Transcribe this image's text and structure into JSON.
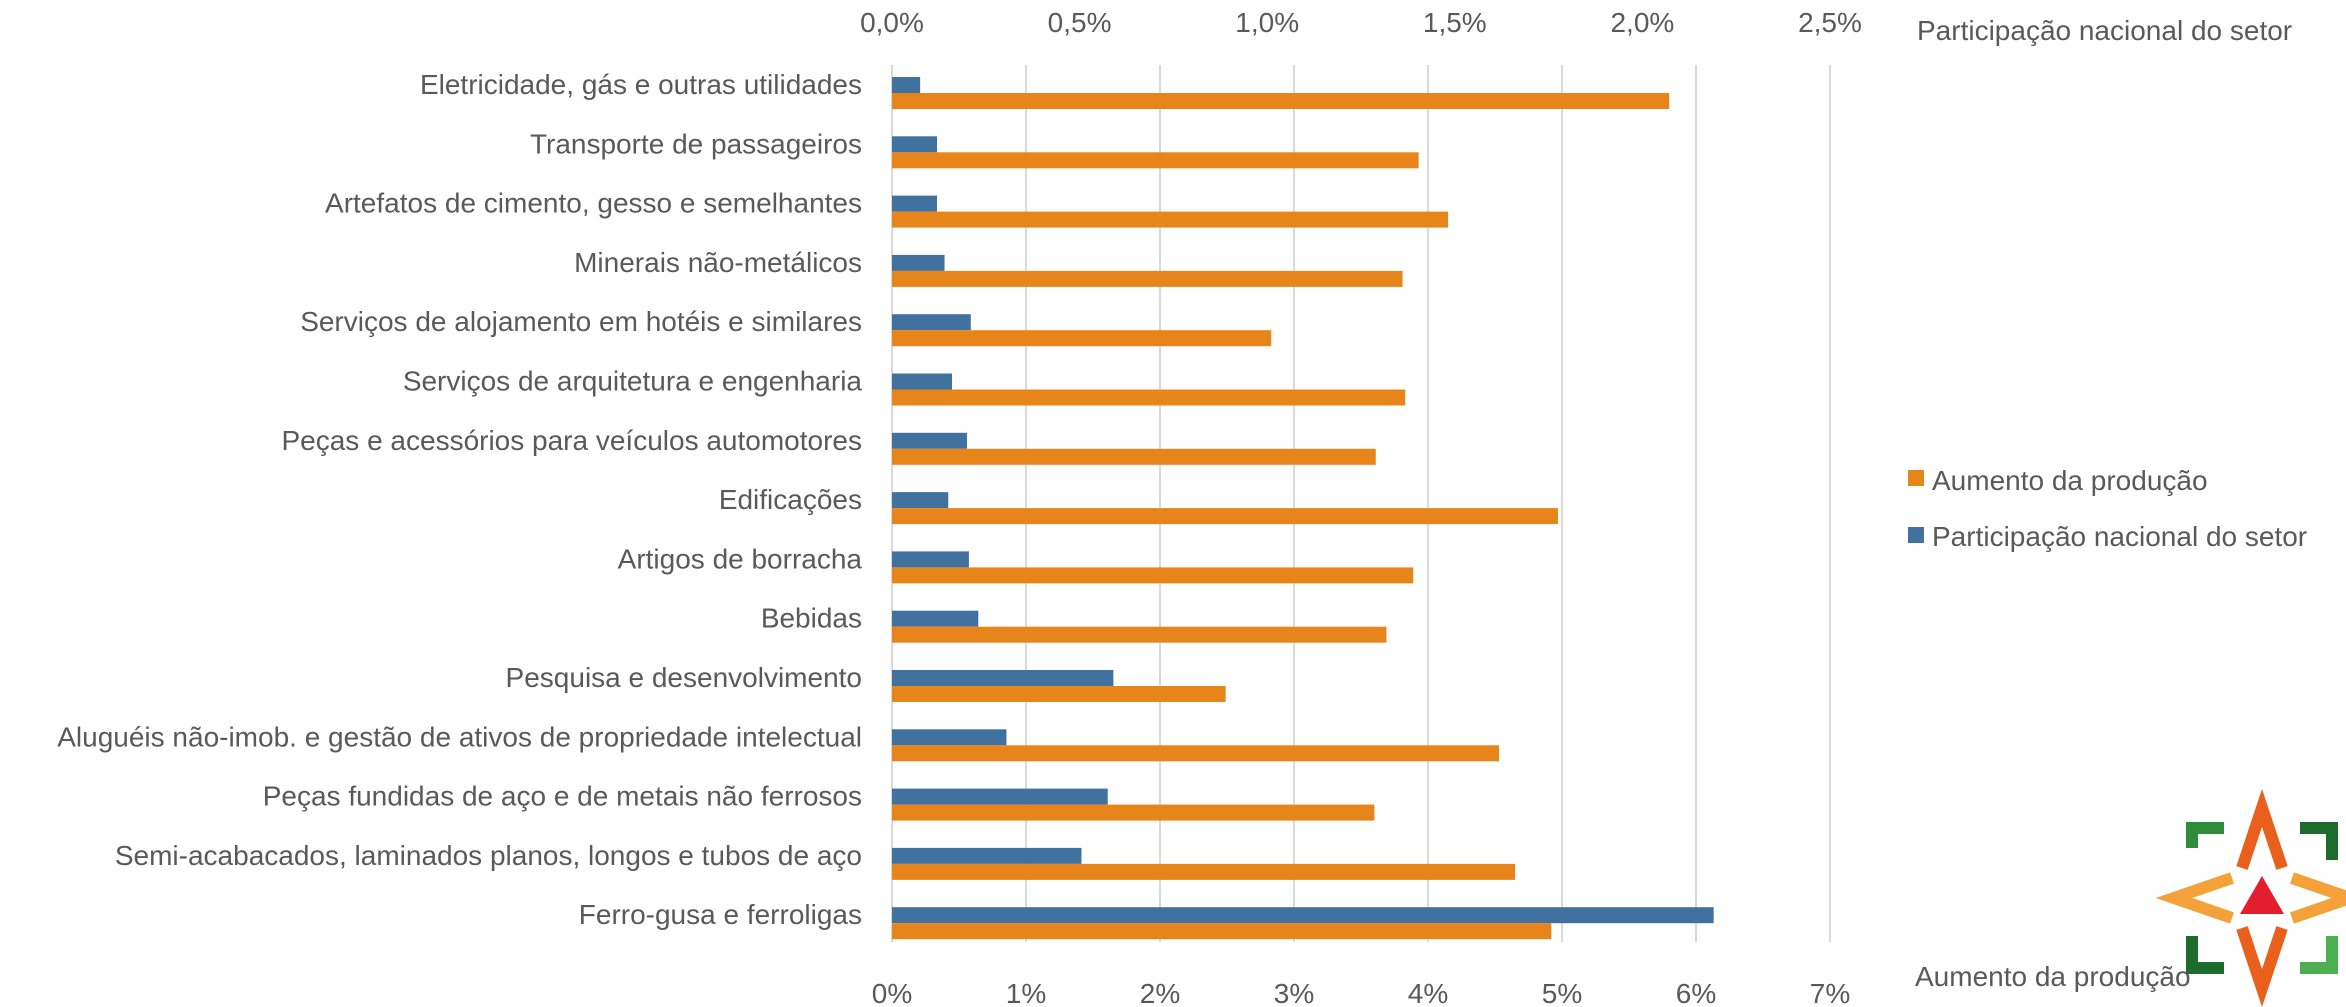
{
  "chart_data": {
    "type": "bar",
    "orientation": "horizontal",
    "categories": [
      "Eletricidade, gás e outras utilidades",
      "Transporte de passageiros",
      "Artefatos de cimento, gesso e semelhantes",
      "Minerais não-metálicos",
      "Serviços de alojamento em hotéis e similares",
      "Serviços de arquitetura e engenharia",
      "Peças e acessórios para veículos automotores",
      "Edificações",
      "Artigos de borracha",
      "Bebidas",
      "Pesquisa e desenvolvimento",
      "Aluguéis não-imob. e gestão de ativos de propriedade intelectual",
      "Peças fundidas de aço e de metais não ferrosos",
      "Semi-acabacados, laminados planos, longos e tubos de aço",
      "Ferro-gusa e ferroligas"
    ],
    "series": [
      {
        "name": "Participação nacional do setor",
        "color": "#41729F",
        "axis": "top",
        "values": [
          0.075,
          0.12,
          0.12,
          0.14,
          0.21,
          0.16,
          0.2,
          0.15,
          0.205,
          0.23,
          0.59,
          0.305,
          0.575,
          0.505,
          2.19
        ]
      },
      {
        "name": "Aumento da produção",
        "color": "#E8851A",
        "axis": "bottom",
        "values": [
          5.8,
          3.93,
          4.15,
          3.81,
          2.83,
          3.83,
          3.61,
          4.97,
          3.89,
          3.69,
          2.49,
          4.53,
          3.6,
          4.65,
          4.92
        ]
      }
    ],
    "x_top": {
      "label": "Participação nacional do setor",
      "range": [
        0,
        2.5
      ],
      "ticks": [
        "0,0%",
        "0,5%",
        "1,0%",
        "1,5%",
        "2,0%",
        "2,5%"
      ]
    },
    "x_bottom": {
      "label": "Aumento da produção",
      "range": [
        0,
        7
      ],
      "ticks": [
        "0%",
        "1%",
        "2%",
        "3%",
        "4%",
        "5%",
        "6%",
        "7%"
      ]
    },
    "legend": {
      "position": "right",
      "items": [
        {
          "label": "Aumento da produção",
          "color": "#E8851A"
        },
        {
          "label": "Participação nacional do setor",
          "color": "#41729F"
        }
      ]
    },
    "grid": true,
    "logo": "star-arrows-logo"
  }
}
